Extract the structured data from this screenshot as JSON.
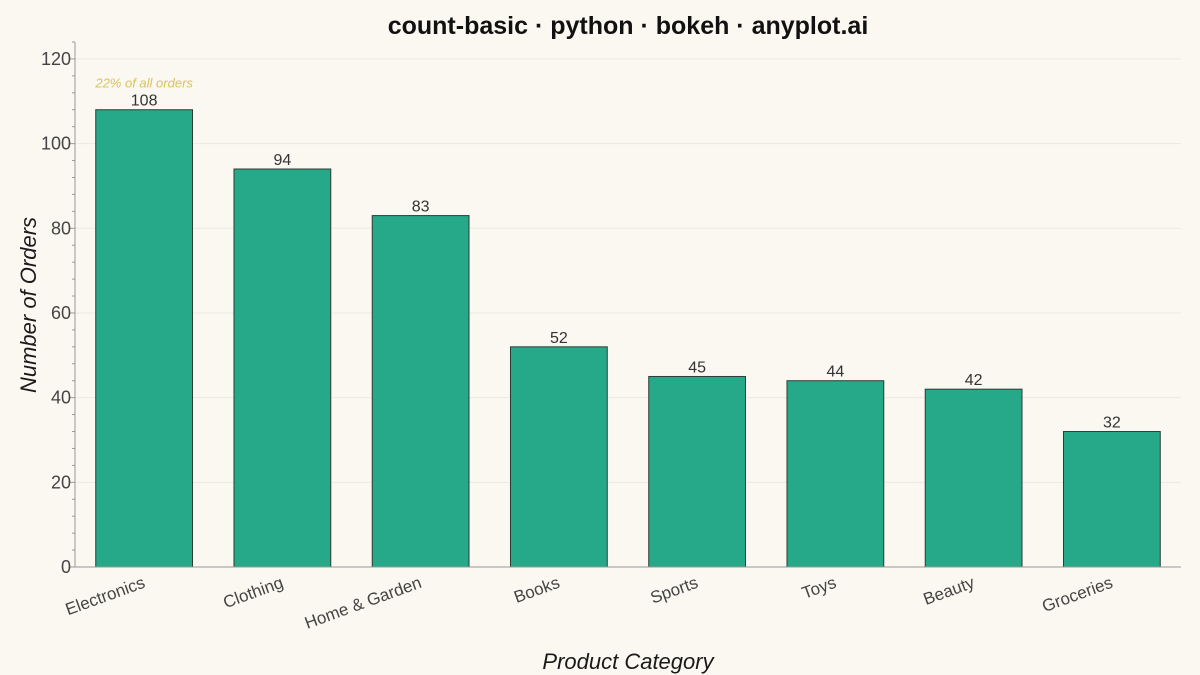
{
  "chart_data": {
    "type": "bar",
    "title": "count-basic · python · bokeh · anyplot.ai",
    "xlabel": "Product Category",
    "ylabel": "Number of Orders",
    "categories": [
      "Electronics",
      "Clothing",
      "Home & Garden",
      "Books",
      "Sports",
      "Toys",
      "Beauty",
      "Groceries"
    ],
    "values": [
      108,
      94,
      83,
      52,
      45,
      44,
      42,
      32
    ],
    "ylim": [
      0,
      124
    ],
    "yticks": [
      0,
      20,
      40,
      60,
      80,
      100,
      120
    ],
    "grid": true,
    "legend": "none",
    "annotation": {
      "category": "Electronics",
      "text": "22% of all orders"
    },
    "colors": {
      "bar": "#26A988",
      "bar_outline": "#2f3b36",
      "annotation": "#D9C25F",
      "background": "#FAF8F1"
    }
  }
}
